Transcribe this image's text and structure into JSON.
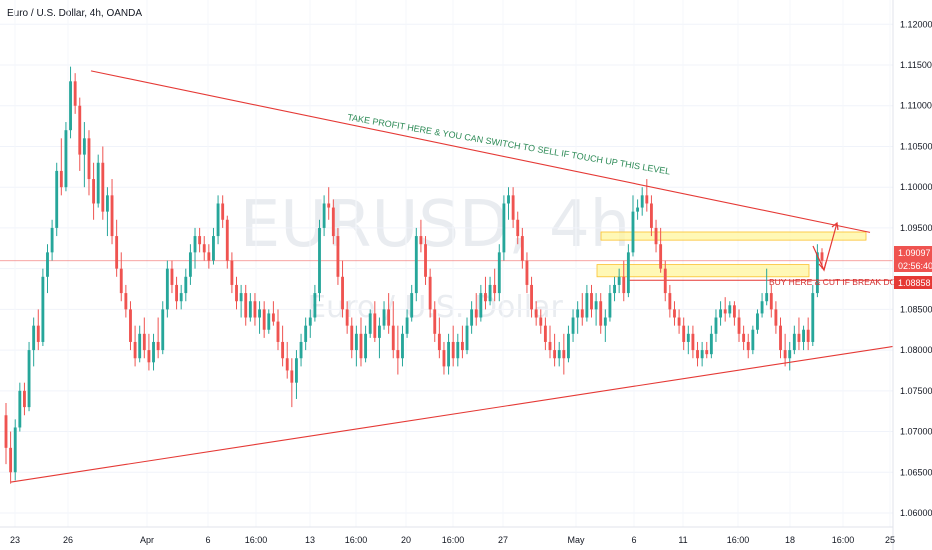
{
  "header": {
    "title": "Euro / U.S. Dollar, 4h, OANDA"
  },
  "watermark": {
    "symbol": "EURUSD, 4h",
    "subtitle": "Euro / U.S. Dollar"
  },
  "colors": {
    "up": "#26a69a",
    "down": "#ef5350",
    "trendline": "#e53935",
    "zone_fill": "#fff59d",
    "zone_stroke": "#fbc02d",
    "price_line": "#ef5350",
    "annotation_green": "#2e8b57",
    "annotation_red": "#d32f2f"
  },
  "badges": {
    "last_price": "1.09097",
    "countdown": "02:56:40",
    "level_price": "1.08858"
  },
  "annotations": {
    "take_profit": "TAKE  PROFIT HERE & YOU CAN SWITCH TO SELL IF TOUCH UP THIS LEVEL",
    "buy_here": "BUY HERE & CUT IF BREAK DOWN"
  },
  "chart_data": {
    "type": "candlestick",
    "symbol": "EURUSD",
    "timeframe": "4h",
    "ylim": [
      1.06,
      1.122
    ],
    "price_ticks": [
      "1.12000",
      "1.11500",
      "1.11000",
      "1.10500",
      "1.10000",
      "1.09500",
      "1.09000",
      "1.08500",
      "1.08000",
      "1.07500",
      "1.07000",
      "1.06500",
      "1.06000"
    ],
    "time_ticks": [
      "23",
      "26",
      "Apr",
      "6",
      "16:00",
      "13",
      "16:00",
      "20",
      "16:00",
      "27",
      "May",
      "6",
      "11",
      "16:00",
      "18",
      "16:00",
      "25"
    ],
    "last_price": 1.09097,
    "horizontal_level": 1.08858,
    "resistance_zones": [
      {
        "low": 1.0935,
        "high": 1.0945
      },
      {
        "low": 1.089,
        "high": 1.0905
      }
    ],
    "trendlines": [
      {
        "name": "upper",
        "from": {
          "bar": 14,
          "price": 1.1148
        },
        "to": {
          "bar": 193,
          "price": 1.0938
        }
      },
      {
        "name": "lower",
        "from": {
          "bar": 0,
          "price": 1.0637
        },
        "to": {
          "bar": 193,
          "price": 1.0805
        }
      }
    ],
    "ohlc": [
      [
        1.072,
        1.0735,
        1.066,
        1.068
      ],
      [
        1.068,
        1.07,
        1.0636,
        1.065
      ],
      [
        1.065,
        1.0715,
        1.064,
        1.0705
      ],
      [
        1.0705,
        1.076,
        1.07,
        1.075
      ],
      [
        1.075,
        1.076,
        1.072,
        1.073
      ],
      [
        1.073,
        1.081,
        1.0725,
        1.08
      ],
      [
        1.08,
        1.084,
        1.078,
        1.083
      ],
      [
        1.083,
        1.085,
        1.08,
        1.081
      ],
      [
        1.081,
        1.09,
        1.0805,
        1.089
      ],
      [
        1.089,
        1.093,
        1.087,
        1.092
      ],
      [
        1.092,
        1.096,
        1.091,
        1.095
      ],
      [
        1.095,
        1.103,
        1.094,
        1.102
      ],
      [
        1.102,
        1.106,
        1.099,
        1.1
      ],
      [
        1.1,
        1.108,
        1.0995,
        1.107
      ],
      [
        1.107,
        1.1148,
        1.106,
        1.113
      ],
      [
        1.113,
        1.114,
        1.109,
        1.11
      ],
      [
        1.11,
        1.111,
        1.102,
        1.104
      ],
      [
        1.104,
        1.108,
        1.1,
        1.106
      ],
      [
        1.106,
        1.107,
        1.099,
        1.101
      ],
      [
        1.101,
        1.103,
        1.096,
        1.098
      ],
      [
        1.098,
        1.104,
        1.0975,
        1.103
      ],
      [
        1.103,
        1.105,
        1.096,
        1.097
      ],
      [
        1.097,
        1.1,
        1.094,
        1.099
      ],
      [
        1.099,
        1.101,
        1.093,
        1.094
      ],
      [
        1.094,
        1.096,
        1.089,
        1.09
      ],
      [
        1.09,
        1.092,
        1.086,
        1.087
      ],
      [
        1.087,
        1.088,
        1.084,
        1.085
      ],
      [
        1.085,
        1.086,
        1.08,
        1.081
      ],
      [
        1.081,
        1.083,
        1.078,
        1.079
      ],
      [
        1.079,
        1.083,
        1.0785,
        1.082
      ],
      [
        1.082,
        1.084,
        1.079,
        1.08
      ],
      [
        1.08,
        1.082,
        1.0775,
        1.0785
      ],
      [
        1.0785,
        1.082,
        1.0775,
        1.081
      ],
      [
        1.081,
        1.084,
        1.079,
        1.08
      ],
      [
        1.08,
        1.086,
        1.0795,
        1.085
      ],
      [
        1.085,
        1.091,
        1.084,
        1.09
      ],
      [
        1.09,
        1.091,
        1.087,
        1.088
      ],
      [
        1.088,
        1.089,
        1.085,
        1.086
      ],
      [
        1.086,
        1.088,
        1.085,
        1.087
      ],
      [
        1.087,
        1.09,
        1.086,
        1.089
      ],
      [
        1.089,
        1.093,
        1.088,
        1.092
      ],
      [
        1.092,
        1.095,
        1.09,
        1.094
      ],
      [
        1.094,
        1.095,
        1.092,
        1.093
      ],
      [
        1.093,
        1.094,
        1.091,
        1.092
      ],
      [
        1.092,
        1.093,
        1.09,
        1.091
      ],
      [
        1.091,
        1.095,
        1.0905,
        1.094
      ],
      [
        1.094,
        1.099,
        1.093,
        1.098
      ],
      [
        1.098,
        1.099,
        1.095,
        1.096
      ],
      [
        1.096,
        1.0965,
        1.09,
        1.091
      ],
      [
        1.091,
        1.092,
        1.087,
        1.088
      ],
      [
        1.088,
        1.089,
        1.085,
        1.086
      ],
      [
        1.086,
        1.088,
        1.084,
        1.087
      ],
      [
        1.087,
        1.088,
        1.083,
        1.084
      ],
      [
        1.084,
        1.087,
        1.0835,
        1.086
      ],
      [
        1.086,
        1.087,
        1.083,
        1.084
      ],
      [
        1.084,
        1.086,
        1.082,
        1.085
      ],
      [
        1.085,
        1.086,
        1.0815,
        1.0825
      ],
      [
        1.0825,
        1.085,
        1.082,
        1.0845
      ],
      [
        1.0845,
        1.086,
        1.083,
        1.0835
      ],
      [
        1.0835,
        1.085,
        1.08,
        1.081
      ],
      [
        1.081,
        1.083,
        1.078,
        1.079
      ],
      [
        1.079,
        1.081,
        1.0765,
        1.0775
      ],
      [
        1.0775,
        1.079,
        1.073,
        1.076
      ],
      [
        1.076,
        1.08,
        1.074,
        1.079
      ],
      [
        1.079,
        1.082,
        1.078,
        1.081
      ],
      [
        1.081,
        1.084,
        1.08,
        1.083
      ],
      [
        1.083,
        1.085,
        1.0815,
        1.084
      ],
      [
        1.084,
        1.088,
        1.0835,
        1.087
      ],
      [
        1.087,
        1.096,
        1.086,
        1.095
      ],
      [
        1.095,
        1.099,
        1.094,
        1.098
      ],
      [
        1.098,
        1.1,
        1.096,
        1.0975
      ],
      [
        1.0975,
        1.0985,
        1.093,
        1.094
      ],
      [
        1.094,
        1.095,
        1.088,
        1.089
      ],
      [
        1.089,
        1.091,
        1.084,
        1.085
      ],
      [
        1.085,
        1.086,
        1.082,
        1.083
      ],
      [
        1.083,
        1.084,
        1.079,
        1.08
      ],
      [
        1.08,
        1.083,
        1.078,
        1.082
      ],
      [
        1.082,
        1.084,
        1.078,
        1.079
      ],
      [
        1.079,
        1.083,
        1.0785,
        1.082
      ],
      [
        1.082,
        1.085,
        1.0815,
        1.0845
      ],
      [
        1.0845,
        1.086,
        1.081,
        1.0815
      ],
      [
        1.0815,
        1.084,
        1.079,
        1.083
      ],
      [
        1.083,
        1.086,
        1.0825,
        1.085
      ],
      [
        1.085,
        1.087,
        1.082,
        1.083
      ],
      [
        1.083,
        1.086,
        1.079,
        1.08
      ],
      [
        1.08,
        1.083,
        1.077,
        1.079
      ],
      [
        1.079,
        1.083,
        1.078,
        1.082
      ],
      [
        1.082,
        1.085,
        1.0815,
        1.084
      ],
      [
        1.084,
        1.088,
        1.0835,
        1.087
      ],
      [
        1.087,
        1.095,
        1.086,
        1.094
      ],
      [
        1.094,
        1.096,
        1.092,
        1.093
      ],
      [
        1.093,
        1.094,
        1.088,
        1.089
      ],
      [
        1.089,
        1.09,
        1.084,
        1.085
      ],
      [
        1.085,
        1.086,
        1.081,
        1.082
      ],
      [
        1.082,
        1.084,
        1.079,
        1.08
      ],
      [
        1.08,
        1.081,
        1.077,
        1.078
      ],
      [
        1.078,
        1.082,
        1.077,
        1.081
      ],
      [
        1.081,
        1.083,
        1.078,
        1.079
      ],
      [
        1.079,
        1.082,
        1.078,
        1.081
      ],
      [
        1.081,
        1.083,
        1.079,
        1.08
      ],
      [
        1.08,
        1.084,
        1.0795,
        1.083
      ],
      [
        1.083,
        1.086,
        1.082,
        1.085
      ],
      [
        1.085,
        1.087,
        1.083,
        1.084
      ],
      [
        1.084,
        1.088,
        1.0835,
        1.087
      ],
      [
        1.087,
        1.089,
        1.085,
        1.086
      ],
      [
        1.086,
        1.089,
        1.0855,
        1.088
      ],
      [
        1.088,
        1.09,
        1.086,
        1.087
      ],
      [
        1.087,
        1.093,
        1.086,
        1.092
      ],
      [
        1.092,
        1.099,
        1.091,
        1.098
      ],
      [
        1.098,
        1.1,
        1.096,
        1.099
      ],
      [
        1.099,
        1.1,
        1.095,
        1.096
      ],
      [
        1.096,
        1.097,
        1.093,
        1.094
      ],
      [
        1.094,
        1.095,
        1.09,
        1.091
      ],
      [
        1.091,
        1.092,
        1.087,
        1.088
      ],
      [
        1.088,
        1.089,
        1.084,
        1.085
      ],
      [
        1.085,
        1.086,
        1.083,
        1.084
      ],
      [
        1.084,
        1.085,
        1.082,
        1.083
      ],
      [
        1.083,
        1.084,
        1.08,
        1.081
      ],
      [
        1.081,
        1.083,
        1.079,
        1.08
      ],
      [
        1.08,
        1.082,
        1.078,
        1.079
      ],
      [
        1.079,
        1.081,
        1.078,
        1.08
      ],
      [
        1.08,
        1.082,
        1.077,
        1.079
      ],
      [
        1.079,
        1.083,
        1.0785,
        1.082
      ],
      [
        1.082,
        1.085,
        1.081,
        1.084
      ],
      [
        1.084,
        1.086,
        1.082,
        1.085
      ],
      [
        1.085,
        1.087,
        1.083,
        1.084
      ],
      [
        1.084,
        1.088,
        1.0835,
        1.087
      ],
      [
        1.087,
        1.088,
        1.084,
        1.085
      ],
      [
        1.085,
        1.087,
        1.083,
        1.086
      ],
      [
        1.086,
        1.087,
        1.082,
        1.083
      ],
      [
        1.083,
        1.085,
        1.081,
        1.084
      ],
      [
        1.084,
        1.088,
        1.0835,
        1.087
      ],
      [
        1.087,
        1.089,
        1.086,
        1.088
      ],
      [
        1.088,
        1.09,
        1.087,
        1.089
      ],
      [
        1.089,
        1.091,
        1.086,
        1.087
      ],
      [
        1.087,
        1.093,
        1.0865,
        1.092
      ],
      [
        1.092,
        1.099,
        1.0915,
        1.097
      ],
      [
        1.097,
        1.0985,
        1.096,
        1.0975
      ],
      [
        1.0975,
        1.1,
        1.0965,
        1.099
      ],
      [
        1.099,
        1.101,
        1.097,
        1.098
      ],
      [
        1.098,
        1.099,
        1.094,
        1.095
      ],
      [
        1.095,
        1.096,
        1.092,
        1.093
      ],
      [
        1.093,
        1.095,
        1.0895,
        1.09
      ],
      [
        1.09,
        1.091,
        1.086,
        1.087
      ],
      [
        1.087,
        1.088,
        1.084,
        1.085
      ],
      [
        1.085,
        1.086,
        1.083,
        1.084
      ],
      [
        1.084,
        1.085,
        1.082,
        1.083
      ],
      [
        1.083,
        1.084,
        1.08,
        1.081
      ],
      [
        1.081,
        1.083,
        1.0795,
        1.082
      ],
      [
        1.082,
        1.083,
        1.079,
        1.08
      ],
      [
        1.08,
        1.081,
        1.078,
        1.079
      ],
      [
        1.079,
        1.081,
        1.078,
        1.08
      ],
      [
        1.08,
        1.081,
        1.079,
        1.0795
      ],
      [
        1.0795,
        1.083,
        1.079,
        1.082
      ],
      [
        1.082,
        1.085,
        1.081,
        1.084
      ],
      [
        1.084,
        1.086,
        1.083,
        1.085
      ],
      [
        1.085,
        1.0865,
        1.0835,
        1.0845
      ],
      [
        1.0845,
        1.086,
        1.084,
        1.0855
      ],
      [
        1.0855,
        1.086,
        1.083,
        1.084
      ],
      [
        1.084,
        1.085,
        1.081,
        1.082
      ],
      [
        1.082,
        1.083,
        1.08,
        1.081
      ],
      [
        1.081,
        1.082,
        1.079,
        1.08
      ],
      [
        1.08,
        1.083,
        1.0795,
        1.0825
      ],
      [
        1.0825,
        1.085,
        1.082,
        1.0845
      ],
      [
        1.0845,
        1.087,
        1.084,
        1.086
      ],
      [
        1.086,
        1.09,
        1.0855,
        1.087
      ],
      [
        1.087,
        1.088,
        1.084,
        1.085
      ],
      [
        1.085,
        1.086,
        1.082,
        1.083
      ],
      [
        1.083,
        1.084,
        1.079,
        1.08
      ],
      [
        1.08,
        1.082,
        1.078,
        1.079
      ],
      [
        1.079,
        1.081,
        1.0775,
        1.08
      ],
      [
        1.08,
        1.083,
        1.0795,
        1.082
      ],
      [
        1.082,
        1.084,
        1.08,
        1.081
      ],
      [
        1.081,
        1.083,
        1.08,
        1.0825
      ],
      [
        1.0825,
        1.084,
        1.08,
        1.081
      ],
      [
        1.081,
        1.088,
        1.0805,
        1.087
      ],
      [
        1.087,
        1.093,
        1.0865,
        1.092
      ],
      [
        1.092,
        1.0925,
        1.09,
        1.091
      ]
    ]
  }
}
